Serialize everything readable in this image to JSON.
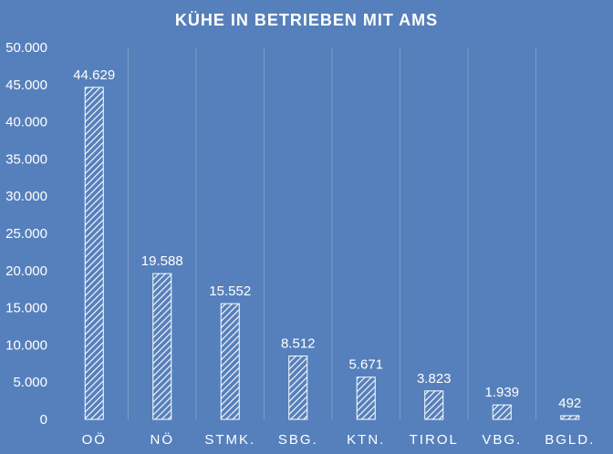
{
  "colors": {
    "background": "#5680bb",
    "bar": "#ffffff",
    "gridline": "#7c9ccb",
    "text": "#ffffff"
  },
  "chart_data": {
    "type": "bar",
    "title": "KÜHE IN BETRIEBEN MIT AMS",
    "xlabel": "",
    "ylabel": "",
    "categories": [
      "OÖ",
      "NÖ",
      "STMK.",
      "SBG.",
      "KTN.",
      "TIROL",
      "VBG.",
      "BGLD."
    ],
    "values": [
      44629,
      19588,
      15552,
      8512,
      5671,
      3823,
      1939,
      492
    ],
    "value_labels": [
      "44.629",
      "19.588",
      "15.552",
      "8.512",
      "5.671",
      "3.823",
      "1.939",
      "492"
    ],
    "ylim": [
      0,
      50000
    ],
    "yticks": [
      0,
      5000,
      10000,
      15000,
      20000,
      25000,
      30000,
      35000,
      40000,
      45000,
      50000
    ],
    "ytick_labels": [
      "0",
      "5.000",
      "10.000",
      "15.000",
      "20.000",
      "25.000",
      "30.000",
      "35.000",
      "40.000",
      "45.000",
      "50.000"
    ],
    "grid": "vertical-separators",
    "legend": "none",
    "bar_fill": "diagonal-hatch"
  }
}
